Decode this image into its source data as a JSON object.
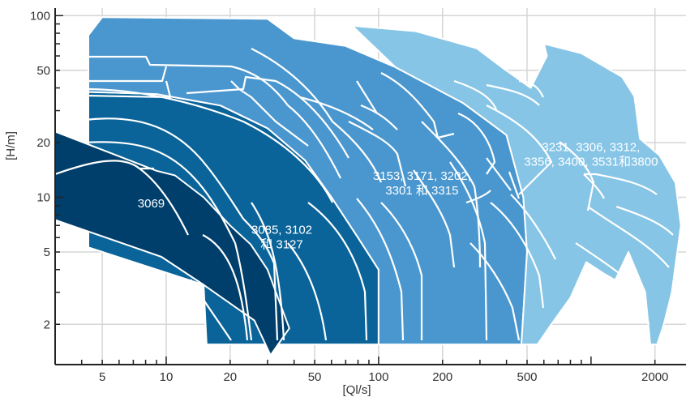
{
  "chart_data": {
    "type": "area",
    "x_scale": "log",
    "y_scale": "log",
    "xlabel": "[Ql/s]",
    "ylabel": "[H/m]",
    "grid": true,
    "x_ticks": [
      5,
      10,
      20,
      50,
      100,
      200,
      500,
      2000
    ],
    "y_ticks": [
      2,
      5,
      10,
      20,
      50,
      100
    ],
    "xlim": [
      3,
      2800
    ],
    "ylim": [
      1.2,
      110
    ],
    "colors": {
      "darkest": "#003f6b",
      "dark": "#0a6499",
      "medium": "#4a97cf",
      "light": "#87c5e6",
      "grid": "#d6d6d6",
      "axis": "#222222"
    },
    "regions": [
      {
        "label": "3069",
        "color": "#003f6b",
        "label_at": [
          8.5,
          8.8
        ],
        "outline": [
          [
            3,
            23
          ],
          [
            9,
            14
          ],
          [
            11,
            13.2
          ],
          [
            15,
            10
          ],
          [
            20,
            7
          ],
          [
            25,
            5.5
          ],
          [
            30,
            4
          ],
          [
            38,
            1.9
          ],
          [
            31,
            1.35
          ],
          [
            26,
            2.1
          ],
          [
            15,
            3.3
          ],
          [
            9.5,
            4.7
          ],
          [
            3,
            7.5
          ]
        ]
      },
      {
        "label_lines": [
          "3085, 3102",
          "和 3127"
        ],
        "color": "#0a6499",
        "label_at": [
          35,
          6.3
        ],
        "outline": [
          [
            4.3,
            38
          ],
          [
            9,
            37
          ],
          [
            18,
            32
          ],
          [
            30,
            24
          ],
          [
            45,
            16
          ],
          [
            60,
            10
          ],
          [
            80,
            6
          ],
          [
            100,
            4
          ],
          [
            100,
            1.55
          ],
          [
            15.5,
            1.55
          ],
          [
            15,
            3.3
          ],
          [
            4.3,
            5.3
          ]
        ]
      },
      {
        "label_lines": [
          "3153, 3171, 3202,",
          "3301 和 3315"
        ],
        "color": "#4a97cf",
        "label_at": [
          160,
          12.5
        ],
        "outline": [
          [
            5,
            98
          ],
          [
            30,
            96
          ],
          [
            40,
            75
          ],
          [
            70,
            68
          ],
          [
            120,
            52
          ],
          [
            250,
            33
          ],
          [
            400,
            22
          ],
          [
            480,
            10
          ],
          [
            500,
            5
          ],
          [
            470,
            1.55
          ],
          [
            100,
            1.55
          ],
          [
            100,
            4
          ],
          [
            80,
            6
          ],
          [
            60,
            10
          ],
          [
            45,
            16
          ],
          [
            30,
            24
          ],
          [
            18,
            32
          ],
          [
            9,
            37
          ],
          [
            4.3,
            38
          ],
          [
            4.3,
            78
          ]
        ]
      },
      {
        "label_lines": [
          "3231, 3306, 3312,",
          "3356, 3400, 3531和3800"
        ],
        "color": "#87c5e6",
        "label_at": [
          1000,
          18
        ],
        "outline": [
          [
            75,
            88
          ],
          [
            150,
            82
          ],
          [
            290,
            66
          ],
          [
            380,
            52
          ],
          [
            520,
            40
          ],
          [
            620,
            60
          ],
          [
            600,
            70
          ],
          [
            900,
            62
          ],
          [
            1400,
            46
          ],
          [
            1600,
            36
          ],
          [
            1700,
            21
          ],
          [
            2100,
            17
          ],
          [
            2500,
            12
          ],
          [
            2650,
            7
          ],
          [
            2400,
            3
          ],
          [
            2200,
            2
          ],
          [
            2050,
            1.55
          ],
          [
            1900,
            1.55
          ],
          [
            1800,
            3
          ],
          [
            1500,
            5
          ],
          [
            1300,
            3.5
          ],
          [
            1150,
            3.8
          ],
          [
            950,
            4.4
          ],
          [
            800,
            2.8
          ],
          [
            650,
            2
          ],
          [
            560,
            1.55
          ],
          [
            470,
            1.55
          ],
          [
            500,
            5
          ],
          [
            480,
            10
          ],
          [
            400,
            22
          ],
          [
            250,
            33
          ],
          [
            120,
            52
          ]
        ]
      }
    ]
  }
}
